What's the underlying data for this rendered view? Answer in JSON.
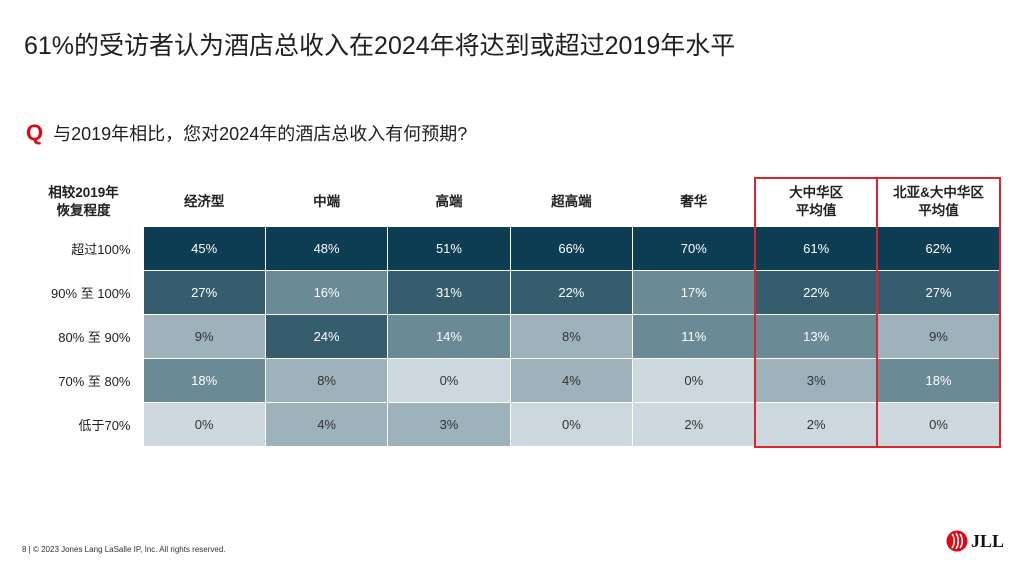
{
  "title": "61%的受访者认为酒店总收入在2024年将达到或超过2019年水平",
  "question": {
    "marker": "Q",
    "text": "与2019年相比，您对2024年的酒店总收入有何预期?"
  },
  "footer": "8  |  © 2023 Jones Lang LaSalle IP, Inc. All rights reserved.",
  "logo": {
    "text": "JLL",
    "color": "#e30613"
  },
  "colors": {
    "highlight_border": "#d9262e"
  },
  "chart_data": {
    "type": "table",
    "corner_header": [
      "相较2019年",
      "恢复程度"
    ],
    "columns": [
      [
        "经济型"
      ],
      [
        "中端"
      ],
      [
        "高端"
      ],
      [
        "超高端"
      ],
      [
        "奢华"
      ],
      [
        "大中华区",
        "平均值"
      ],
      [
        "北亚&大中华区",
        "平均值"
      ]
    ],
    "highlighted_columns": [
      5,
      6
    ],
    "rows": [
      {
        "label": "超过100%",
        "values": [
          45,
          48,
          51,
          66,
          70,
          61,
          62
        ]
      },
      {
        "label": "90% 至 100%",
        "values": [
          27,
          16,
          31,
          22,
          17,
          22,
          27
        ]
      },
      {
        "label": "80% 至 90%",
        "values": [
          9,
          24,
          14,
          8,
          11,
          13,
          9
        ]
      },
      {
        "label": "70% 至 80%",
        "values": [
          18,
          8,
          0,
          4,
          0,
          3,
          18
        ]
      },
      {
        "label": "低于70%",
        "values": [
          0,
          4,
          3,
          0,
          2,
          2,
          0
        ]
      }
    ],
    "value_suffix": "%",
    "color_scale": [
      "#ccd8dd",
      "#9db2bb",
      "#6a8a96",
      "#355d6d",
      "#0c3d52"
    ]
  }
}
